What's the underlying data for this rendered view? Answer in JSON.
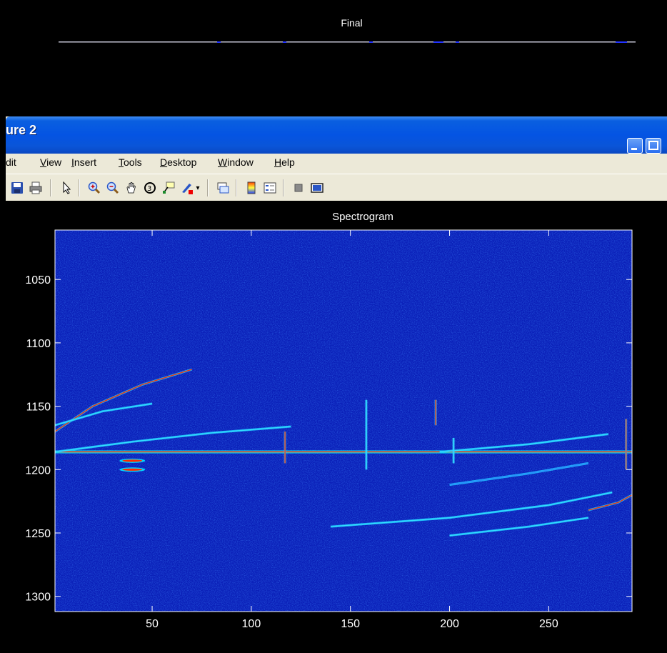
{
  "background_figure": {
    "axes_title": "Final"
  },
  "window": {
    "title": "ure 2",
    "menu": [
      {
        "label": "dit",
        "accel": ""
      },
      {
        "label": "View",
        "accel": "V"
      },
      {
        "label": "Insert",
        "accel": "I"
      },
      {
        "label": "Tools",
        "accel": "T"
      },
      {
        "label": "Desktop",
        "accel": "D"
      },
      {
        "label": "Window",
        "accel": "W"
      },
      {
        "label": "Help",
        "accel": "H"
      }
    ],
    "toolbar_icons": [
      "save-icon",
      "print-icon",
      "arrow-pointer-icon",
      "zoom-in-icon",
      "zoom-out-icon",
      "pan-hand-icon",
      "rotate-3d-icon",
      "data-cursor-icon",
      "brush-icon",
      "link-plot-icon",
      "colorbar-icon",
      "legend-icon",
      "hide-plot-tools-icon",
      "show-plot-tools-icon"
    ]
  },
  "chart_data": {
    "type": "heatmap",
    "title": "Spectrogram",
    "xlabel": "",
    "ylabel": "",
    "xlim": [
      1,
      292
    ],
    "ylim": [
      1312,
      1011
    ],
    "xticks": [
      50,
      100,
      150,
      200,
      250
    ],
    "yticks": [
      1050,
      1100,
      1150,
      1200,
      1250,
      1300
    ],
    "colormap": "jet",
    "background_color": "#0a1fb8",
    "features": [
      {
        "kind": "horizontal-line",
        "y": 1186,
        "x": [
          1,
          292
        ],
        "intensity": "high"
      },
      {
        "kind": "curve",
        "points": [
          [
            1,
            1170
          ],
          [
            20,
            1150
          ],
          [
            45,
            1133
          ],
          [
            70,
            1121
          ]
        ],
        "intensity": "high"
      },
      {
        "kind": "curve",
        "points": [
          [
            1,
            1165
          ],
          [
            25,
            1154
          ],
          [
            50,
            1148
          ]
        ],
        "intensity": "medium"
      },
      {
        "kind": "curve",
        "points": [
          [
            1,
            1186
          ],
          [
            40,
            1178
          ],
          [
            80,
            1171
          ],
          [
            120,
            1166
          ]
        ],
        "intensity": "medium"
      },
      {
        "kind": "curve",
        "points": [
          [
            195,
            1186
          ],
          [
            240,
            1180
          ],
          [
            280,
            1172
          ]
        ],
        "intensity": "medium"
      },
      {
        "kind": "curve",
        "points": [
          [
            200,
            1212
          ],
          [
            240,
            1203
          ],
          [
            270,
            1195
          ]
        ],
        "intensity": "low"
      },
      {
        "kind": "curve",
        "points": [
          [
            140,
            1245
          ],
          [
            200,
            1238
          ],
          [
            250,
            1228
          ],
          [
            282,
            1218
          ]
        ],
        "intensity": "medium"
      },
      {
        "kind": "curve",
        "points": [
          [
            200,
            1252
          ],
          [
            240,
            1245
          ],
          [
            270,
            1238
          ]
        ],
        "intensity": "medium"
      },
      {
        "kind": "curve",
        "points": [
          [
            270,
            1232
          ],
          [
            285,
            1226
          ],
          [
            292,
            1220
          ]
        ],
        "intensity": "high"
      },
      {
        "kind": "blob",
        "x": 40,
        "y": 1193,
        "intensity": "high"
      },
      {
        "kind": "blob",
        "x": 40,
        "y": 1200,
        "intensity": "high"
      },
      {
        "kind": "vertical",
        "x": 117,
        "y": [
          1170,
          1195
        ],
        "intensity": "high"
      },
      {
        "kind": "vertical",
        "x": 158,
        "y": [
          1145,
          1200
        ],
        "intensity": "medium"
      },
      {
        "kind": "vertical",
        "x": 193,
        "y": [
          1145,
          1165
        ],
        "intensity": "high"
      },
      {
        "kind": "vertical",
        "x": 202,
        "y": [
          1175,
          1195
        ],
        "intensity": "medium"
      },
      {
        "kind": "vertical",
        "x": 289,
        "y": [
          1160,
          1200
        ],
        "intensity": "high"
      }
    ]
  }
}
